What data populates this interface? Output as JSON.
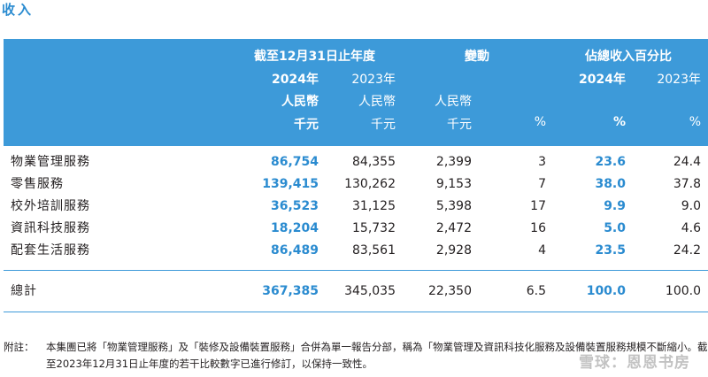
{
  "section_title": "收入",
  "header": {
    "group_period": "截至12月31日止年度",
    "group_change": "變動",
    "group_share": "佔總收入百分比",
    "year_2024": "2024年",
    "year_2023": "2023年",
    "share_2024": "2024年",
    "share_2023": "2023年",
    "currency": "人民幣",
    "unit": "千元",
    "pct": "%"
  },
  "rows": [
    {
      "label": "物業管理服務",
      "v2024": "86,754",
      "v2023": "84,355",
      "change": "2,399",
      "change_pct": "3",
      "share2024": "23.6",
      "share2023": "24.4"
    },
    {
      "label": "零售服務",
      "v2024": "139,415",
      "v2023": "130,262",
      "change": "9,153",
      "change_pct": "7",
      "share2024": "38.0",
      "share2023": "37.8"
    },
    {
      "label": "校外培訓服務",
      "v2024": "36,523",
      "v2023": "31,125",
      "change": "5,398",
      "change_pct": "17",
      "share2024": "9.9",
      "share2023": "9.0"
    },
    {
      "label": "資訊科技服務",
      "v2024": "18,204",
      "v2023": "15,732",
      "change": "2,472",
      "change_pct": "16",
      "share2024": "5.0",
      "share2023": "4.6"
    },
    {
      "label": "配套生活服務",
      "v2024": "86,489",
      "v2023": "83,561",
      "change": "2,928",
      "change_pct": "4",
      "share2024": "23.5",
      "share2023": "24.2"
    }
  ],
  "total": {
    "label": "總計",
    "v2024": "367,385",
    "v2023": "345,035",
    "change": "22,350",
    "change_pct": "6.5",
    "share2024": "100.0",
    "share2023": "100.0"
  },
  "note": {
    "label": "附註：",
    "text": "本集團已將「物業管理服務」及「裝修及設備裝置服務」合併為單一報告分部，稱為「物業管理及資訊科技化服務及設備裝置服務規模不斷縮小。截至2023年12月31日止年度的若干比較數字已進行修訂，以保持一致性。"
  },
  "watermark": "雪球：恩恩书房"
}
